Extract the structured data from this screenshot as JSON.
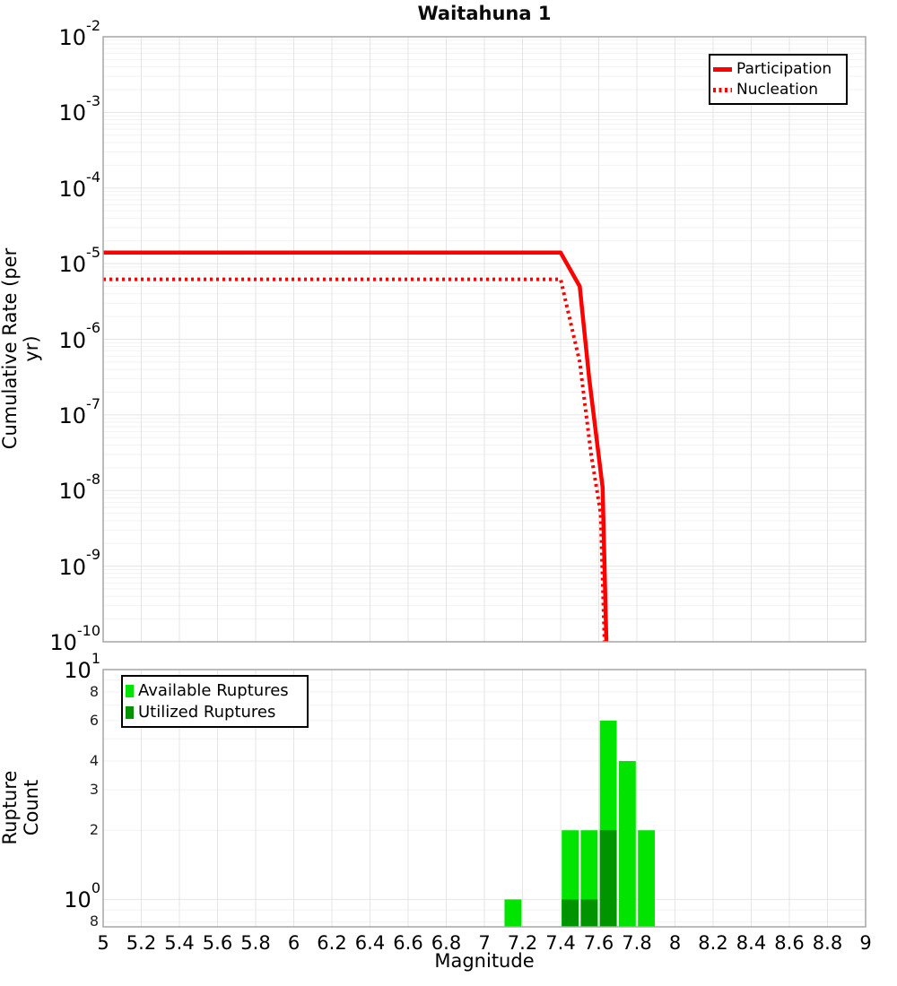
{
  "title": "Waitahuna 1",
  "chart_data": [
    {
      "type": "line",
      "panel": "cumulative-rate",
      "ylabel": "Cumulative Rate (per yr)",
      "yscale": "log",
      "ylim": [
        1e-10,
        0.01
      ],
      "xlim": [
        5,
        9
      ],
      "grid": true,
      "y_tick_base": 10,
      "y_tick_exponents": [
        -2,
        -3,
        -4,
        -5,
        -6,
        -7,
        -8,
        -9,
        -10
      ],
      "legend_position": "top-right",
      "legend": [
        {
          "label": "Participation",
          "style": "solid",
          "color": "#FF0000"
        },
        {
          "label": "Nucleation",
          "style": "dotted",
          "color": "#FF0000"
        }
      ],
      "series": [
        {
          "name": "Participation",
          "style": "solid",
          "color": "#FF0000",
          "points": [
            [
              5.0,
              1.4e-05
            ],
            [
              7.4,
              1.4e-05
            ],
            [
              7.5,
              5e-06
            ],
            [
              7.55,
              3e-07
            ],
            [
              7.62,
              1.1e-08
            ],
            [
              7.64,
              1e-10
            ]
          ]
        },
        {
          "name": "Nucleation",
          "style": "dotted",
          "color": "#FF0000",
          "points": [
            [
              5.0,
              6.2e-06
            ],
            [
              7.4,
              6.2e-06
            ],
            [
              7.5,
              5e-07
            ],
            [
              7.56,
              3e-08
            ],
            [
              7.61,
              5e-09
            ],
            [
              7.63,
              1e-10
            ]
          ]
        }
      ]
    },
    {
      "type": "bar",
      "panel": "rupture-count",
      "ylabel": "Rupture Count",
      "xlabel": "Magnitude",
      "yscale": "log",
      "ylim": [
        0.76,
        10
      ],
      "xlim": [
        5,
        9
      ],
      "grid": true,
      "y_tick_base": 10,
      "y_major_tick_exponents": [
        1,
        0
      ],
      "y_minor_ticks": [
        {
          "value": 8,
          "label": "8"
        },
        {
          "value": 6,
          "label": "6"
        },
        {
          "value": 4,
          "label": "4"
        },
        {
          "value": 3,
          "label": "3"
        },
        {
          "value": 2,
          "label": "2"
        },
        {
          "value": 0.8,
          "label": "8"
        }
      ],
      "x_tick_labels": [
        "5",
        "5.2",
        "5.4",
        "5.6",
        "5.8",
        "6",
        "6.2",
        "6.4",
        "6.6",
        "6.8",
        "7",
        "7.2",
        "7.4",
        "7.6",
        "7.8",
        "8",
        "8.2",
        "8.4",
        "8.6",
        "8.8",
        "9"
      ],
      "bar_bin_width": 0.1,
      "categories": [
        7.15,
        7.45,
        7.55,
        7.65,
        7.75,
        7.85
      ],
      "series": [
        {
          "name": "Available Ruptures",
          "color": "#00E400",
          "values": [
            1,
            2,
            2,
            6,
            4,
            2
          ]
        },
        {
          "name": "Utilized Ruptures",
          "color": "#009400",
          "values": [
            0,
            1,
            1,
            2,
            0,
            0
          ]
        }
      ],
      "legend_position": "top-left",
      "legend": [
        {
          "label": "Available Ruptures",
          "color": "#00E400"
        },
        {
          "label": "Utilized Ruptures",
          "color": "#009400"
        }
      ]
    }
  ]
}
